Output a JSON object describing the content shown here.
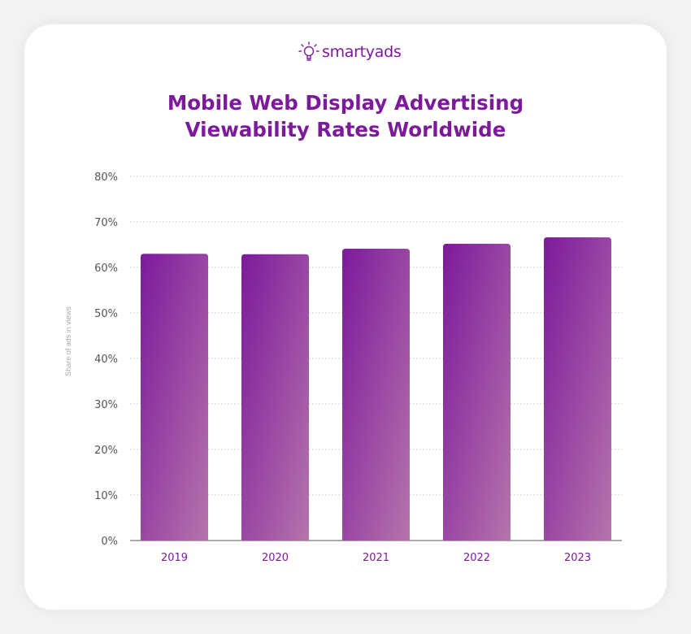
{
  "brand": {
    "name": "smartyads",
    "color": "#7d1a9c"
  },
  "chart_data": {
    "type": "bar",
    "title": "Mobile Web Display Advertising Viewability Rates Worldwide",
    "title_lines": [
      "Mobile Web Display Advertising",
      "Viewability Rates Worldwide"
    ],
    "categories": [
      "2019",
      "2020",
      "2021",
      "2022",
      "2023"
    ],
    "values": [
      63.0,
      62.9,
      64.1,
      65.2,
      66.6
    ],
    "xlabel": "",
    "ylabel": "Share of ads in views",
    "ylim": [
      0,
      80
    ],
    "yticks": [
      "0%",
      "10%",
      "20%",
      "30%",
      "40%",
      "50%",
      "60%",
      "70%",
      "80%"
    ],
    "grid": true,
    "bar_colors": [
      "#7d1a9c",
      "#b574ab"
    ]
  }
}
